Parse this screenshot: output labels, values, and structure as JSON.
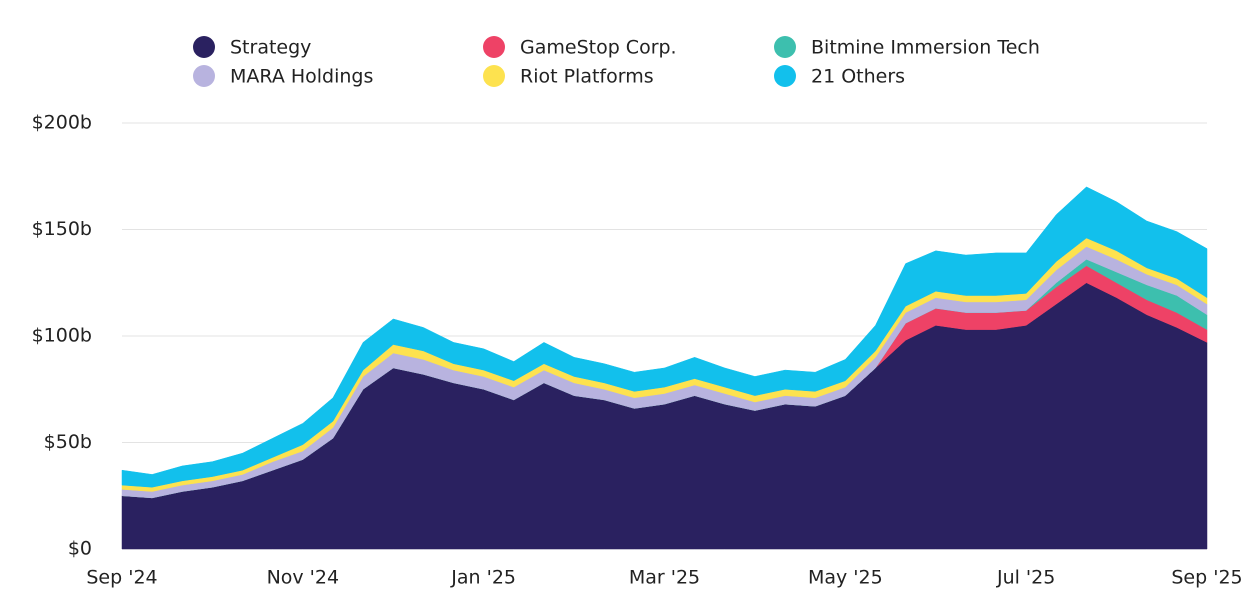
{
  "chart_data": {
    "type": "stacked_area",
    "categories": [
      "Sep '24",
      null,
      null,
      null,
      null,
      null,
      "Nov '24",
      null,
      null,
      null,
      null,
      null,
      "Jan '25",
      null,
      null,
      null,
      null,
      null,
      "Mar '25",
      null,
      null,
      null,
      null,
      null,
      "May '25",
      null,
      null,
      null,
      null,
      null,
      "Jul '25",
      null,
      null,
      null,
      null,
      null,
      "Sep '25"
    ],
    "series": [
      {
        "name": "Strategy",
        "color": "#2a2160",
        "values": [
          25,
          24,
          27,
          29,
          32,
          37,
          42,
          52,
          75,
          85,
          82,
          78,
          75,
          70,
          78,
          72,
          70,
          66,
          68,
          72,
          68,
          65,
          68,
          67,
          72,
          85,
          98,
          105,
          103,
          103,
          105,
          115,
          125,
          118,
          110,
          104,
          97
        ]
      },
      {
        "name": "GameStop Corp.",
        "color": "#ee4266",
        "values": [
          0,
          0,
          0,
          0,
          0,
          0,
          0,
          0,
          0,
          0,
          0,
          0,
          0,
          0,
          0,
          0,
          0,
          0,
          0,
          0,
          0,
          0,
          0,
          0,
          0,
          0,
          8,
          8,
          8,
          8,
          7,
          8,
          8,
          7,
          7,
          7,
          6
        ]
      },
      {
        "name": "Bitmine Immersion Tech",
        "color": "#3dbfae",
        "values": [
          0,
          0,
          0,
          0,
          0,
          0,
          0,
          0,
          0,
          0,
          0,
          0,
          0,
          0,
          0,
          0,
          0,
          0,
          0,
          0,
          0,
          0,
          0,
          0,
          0,
          0,
          0,
          0,
          0,
          0,
          0,
          2,
          3,
          5,
          7,
          8,
          7
        ]
      },
      {
        "name": "MARA Holdings",
        "color": "#b8b3df",
        "values": [
          3,
          3,
          3,
          3,
          3,
          4,
          4,
          5,
          6,
          7,
          7,
          6,
          6,
          6,
          6,
          6,
          5,
          5,
          5,
          5,
          5,
          4,
          4,
          4,
          4,
          5,
          5,
          5,
          5,
          5,
          5,
          6,
          6,
          6,
          5,
          5,
          5
        ]
      },
      {
        "name": "Riot Platforms",
        "color": "#fde24f",
        "values": [
          2,
          2,
          2,
          2,
          2,
          2,
          3,
          3,
          3,
          4,
          4,
          3,
          3,
          3,
          3,
          3,
          3,
          3,
          3,
          3,
          3,
          3,
          3,
          3,
          3,
          3,
          3,
          3,
          3,
          3,
          3,
          4,
          4,
          4,
          3,
          3,
          3
        ]
      },
      {
        "name": "21 Others",
        "color": "#12c0ec",
        "values": [
          7,
          6,
          7,
          7,
          8,
          9,
          10,
          11,
          13,
          12,
          11,
          10,
          10,
          9,
          10,
          9,
          9,
          9,
          9,
          10,
          9,
          9,
          9,
          9,
          10,
          12,
          20,
          19,
          19,
          20,
          19,
          22,
          24,
          23,
          22,
          22,
          23
        ]
      }
    ],
    "ylim": [
      0,
      200
    ],
    "yticks": [
      {
        "value": 0,
        "label": "$0"
      },
      {
        "value": 50,
        "label": "$50b"
      },
      {
        "value": 100,
        "label": "$100b"
      },
      {
        "value": 150,
        "label": "$150b"
      },
      {
        "value": 200,
        "label": "$200b"
      }
    ],
    "grid": true
  }
}
